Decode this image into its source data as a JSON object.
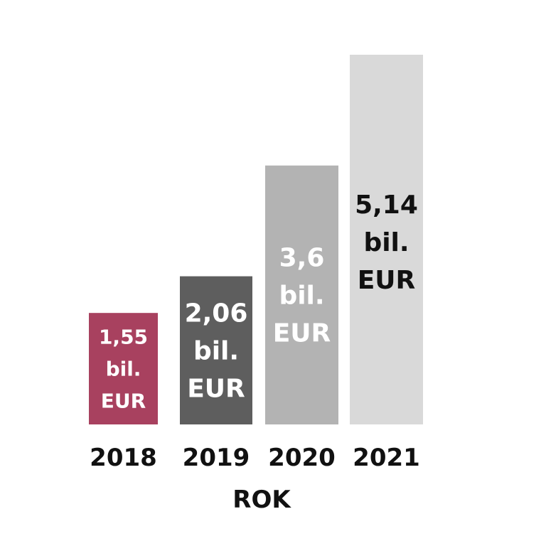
{
  "chart_data": {
    "type": "bar",
    "categories": [
      "2018",
      "2019",
      "2020",
      "2021"
    ],
    "values": [
      1.55,
      2.06,
      3.6,
      5.14
    ],
    "data_labels": [
      [
        "1,55",
        "bil.",
        "EUR"
      ],
      [
        "2,06",
        "bil.",
        "EUR"
      ],
      [
        "3,6",
        "bil.",
        "EUR"
      ],
      [
        "5,14",
        "bil.",
        "EUR"
      ]
    ],
    "bar_colors": [
      "#a8415f",
      "#5e5e5e",
      "#b3b3b3",
      "#d9d9d9"
    ],
    "label_colors": [
      "#ffffff",
      "#ffffff",
      "#ffffff",
      "#111111"
    ],
    "xlabel": "ROK",
    "ylabel": "",
    "title": "",
    "ylim": [
      0,
      5.14
    ],
    "grid": false,
    "legend": "none"
  }
}
